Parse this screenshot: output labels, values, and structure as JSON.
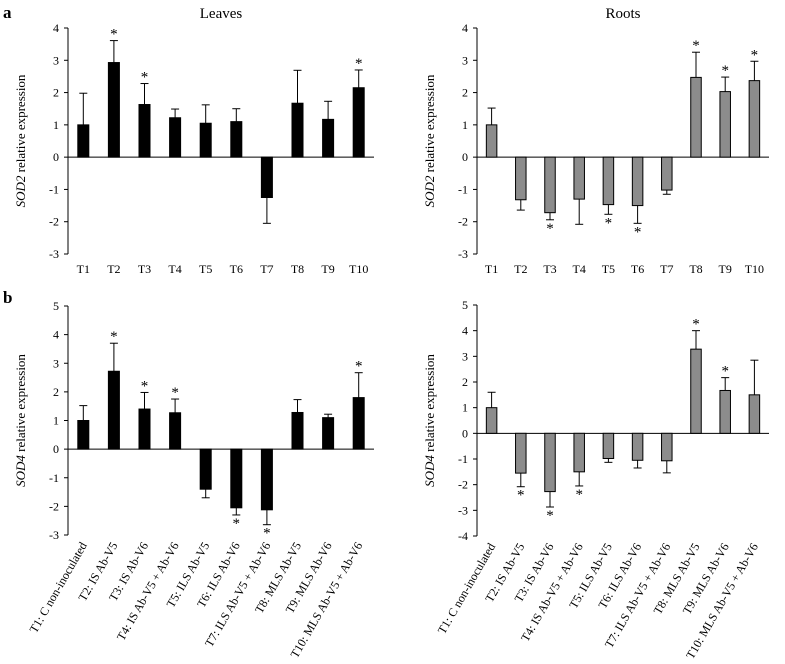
{
  "figure": {
    "panel_a_letter": "a",
    "panel_b_letter": "b"
  },
  "chart_data": [
    {
      "id": "leaves_sod2",
      "type": "bar",
      "title": "Leaves",
      "ylabel_gene": "SOD2",
      "ylabel_rest": " relative expression",
      "categories": [
        "T1",
        "T2",
        "T3",
        "T4",
        "T5",
        "T6",
        "T7",
        "T8",
        "T9",
        "T10"
      ],
      "values": [
        1.0,
        2.93,
        1.63,
        1.22,
        1.05,
        1.1,
        -1.25,
        1.67,
        1.17,
        2.15
      ],
      "errors": [
        0.98,
        0.68,
        0.65,
        0.27,
        0.57,
        0.4,
        0.8,
        1.02,
        0.56,
        0.55
      ],
      "significant": [
        false,
        true,
        true,
        false,
        false,
        false,
        false,
        false,
        false,
        true
      ],
      "ylim": [
        -3,
        4
      ],
      "yticks": [
        -3,
        -2,
        -1,
        0,
        1,
        2,
        3,
        4
      ],
      "bar_color": "#000000",
      "star": "*"
    },
    {
      "id": "roots_sod2",
      "type": "bar",
      "title": "Roots",
      "ylabel_gene": "SOD2",
      "ylabel_rest": " relative expression",
      "categories": [
        "T1",
        "T2",
        "T3",
        "T4",
        "T5",
        "T6",
        "T7",
        "T8",
        "T9",
        "T10"
      ],
      "values": [
        1.0,
        -1.32,
        -1.72,
        -1.3,
        -1.47,
        -1.5,
        -1.02,
        2.47,
        2.03,
        2.37
      ],
      "errors": [
        0.52,
        0.32,
        0.22,
        0.78,
        0.3,
        0.55,
        0.13,
        0.78,
        0.45,
        0.6
      ],
      "significant": [
        false,
        false,
        true,
        false,
        true,
        true,
        false,
        true,
        true,
        true
      ],
      "ylim": [
        -3,
        4
      ],
      "yticks": [
        -3,
        -2,
        -1,
        0,
        1,
        2,
        3,
        4
      ],
      "bar_color": "#8c8c8c",
      "star": "*"
    },
    {
      "id": "leaves_sod4",
      "type": "bar",
      "title": "",
      "ylabel_gene": "SOD4",
      "ylabel_rest": " relative expression",
      "categories": [
        "T1: C non-inoculated",
        "T2: IS Ab-V5",
        "T3: IS Ab-V6",
        "T4: IS Ab-V5 + Ab-V6",
        "T5: ILS Ab-V5",
        "T6: ILS Ab-V6",
        "T7: ILS Ab-V5 + Ab-V6",
        "T8: MLS Ab-V5",
        "T9: MLS Ab-V6",
        "T10: MLS Ab-V5 + Ab-V6"
      ],
      "values": [
        1.0,
        2.72,
        1.4,
        1.27,
        -1.4,
        -2.05,
        -2.12,
        1.28,
        1.1,
        1.8
      ],
      "errors": [
        0.52,
        0.98,
        0.58,
        0.48,
        0.3,
        0.25,
        0.52,
        0.45,
        0.12,
        0.87
      ],
      "significant": [
        false,
        true,
        true,
        true,
        false,
        true,
        true,
        false,
        false,
        true
      ],
      "ylim": [
        -3,
        5
      ],
      "yticks": [
        -3,
        -2,
        -1,
        0,
        1,
        2,
        3,
        4,
        5
      ],
      "bar_color": "#000000",
      "star": "*"
    },
    {
      "id": "roots_sod4",
      "type": "bar",
      "title": "",
      "ylabel_gene": "SOD4",
      "ylabel_rest": " relative expression",
      "categories": [
        "T1: C non-inoculated",
        "T2: IS Ab-V5",
        "T3: IS Ab-V6",
        "T4: IS Ab-V5 + Ab-V6",
        "T5: ILS Ab-V5",
        "T6: ILS Ab-V6",
        "T7: ILS Ab-V5 + Ab-V6",
        "T8: MLS Ab-V5",
        "T9: MLS Ab-V6",
        "T10: MLS Ab-V5 + Ab-V6"
      ],
      "values": [
        1.0,
        -1.55,
        -2.27,
        -1.5,
        -0.98,
        -1.05,
        -1.07,
        3.28,
        1.67,
        1.5
      ],
      "errors": [
        0.6,
        0.53,
        0.6,
        0.55,
        0.15,
        0.3,
        0.47,
        0.72,
        0.5,
        1.35
      ],
      "significant": [
        false,
        true,
        true,
        true,
        false,
        false,
        false,
        true,
        true,
        false
      ],
      "ylim": [
        -4,
        5
      ],
      "yticks": [
        -4,
        -3,
        -2,
        -1,
        0,
        1,
        2,
        3,
        4,
        5
      ],
      "bar_color": "#8c8c8c",
      "star": "*"
    }
  ]
}
